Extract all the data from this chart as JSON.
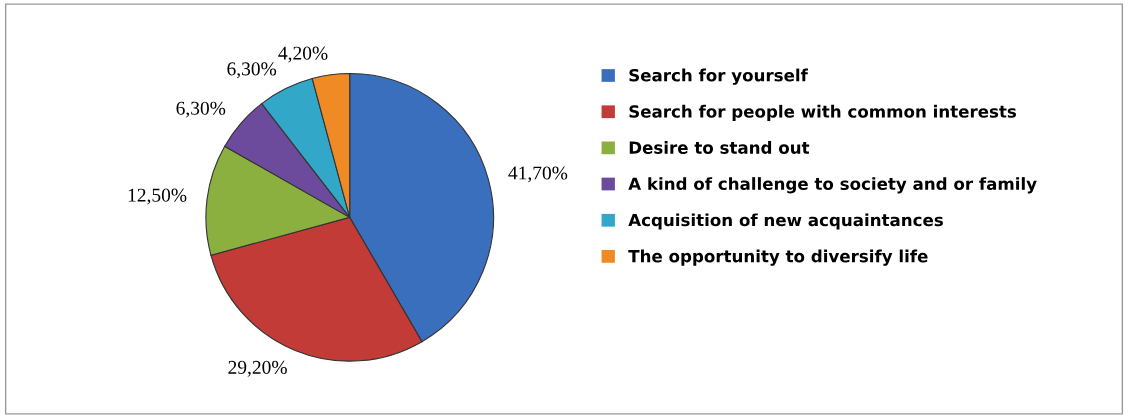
{
  "chart_data": {
    "type": "pie",
    "categories": [
      "Search for yourself",
      "Search for people with common interests",
      "Desire to stand out",
      "A kind of challenge to society and or family",
      "Acquisition of new acquaintances",
      "The opportunity to diversify life"
    ],
    "values": [
      41.7,
      29.2,
      12.5,
      6.3,
      6.3,
      4.2
    ],
    "value_labels": [
      "41,70%",
      "29,20%",
      "12,50%",
      "6,30%",
      "6,30%",
      "4,20%"
    ],
    "colors": [
      "#3a6fbe",
      "#c23b36",
      "#8bb040",
      "#6d4b9c",
      "#32a7c8",
      "#f08a24"
    ],
    "legend": "right"
  }
}
